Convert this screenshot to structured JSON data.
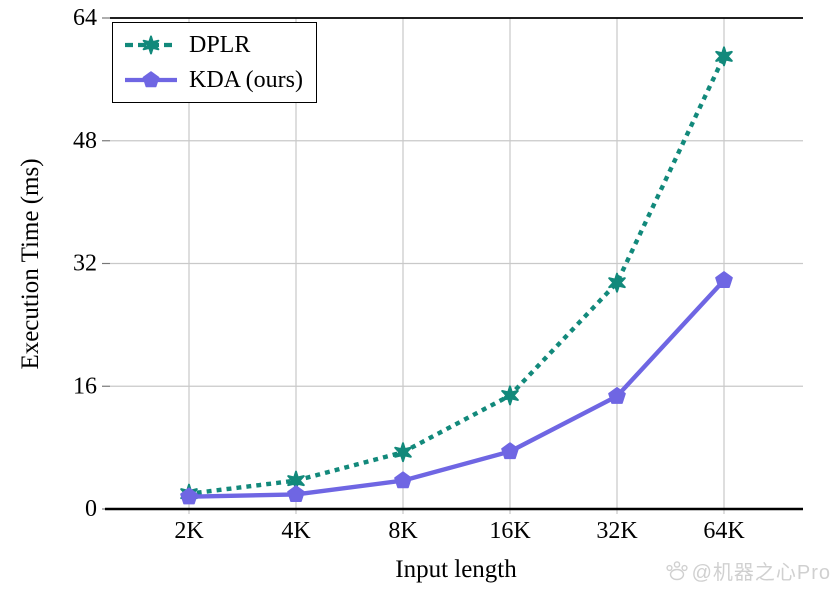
{
  "chart_data": {
    "type": "line",
    "title": "",
    "xlabel": "Input length",
    "ylabel": "Execution Time (ms)",
    "categories": [
      "2K",
      "4K",
      "8K",
      "16K",
      "32K",
      "64K"
    ],
    "yticks": [
      0,
      16,
      32,
      48,
      64
    ],
    "ylim": [
      0,
      64
    ],
    "grid": true,
    "legend_position": "upper-left",
    "series": [
      {
        "name": "DPLR",
        "color": "#12897B",
        "line_style": "dotted",
        "marker": "star",
        "values": [
          2,
          3.7,
          7.4,
          14.8,
          29.5,
          59
        ]
      },
      {
        "name": "KDA (ours)",
        "color": "#6F66E3",
        "line_style": "solid",
        "marker": "pentagon",
        "values": [
          1.6,
          1.9,
          3.7,
          7.5,
          14.7,
          29.8
        ]
      }
    ]
  },
  "colors": {
    "grid": "#c9c9c9",
    "axis": "#000000",
    "tick": "#999999",
    "watermark": "#cccccc"
  },
  "watermark": {
    "icon": "baidu-paw-icon",
    "text": "@机器之心Pro"
  }
}
